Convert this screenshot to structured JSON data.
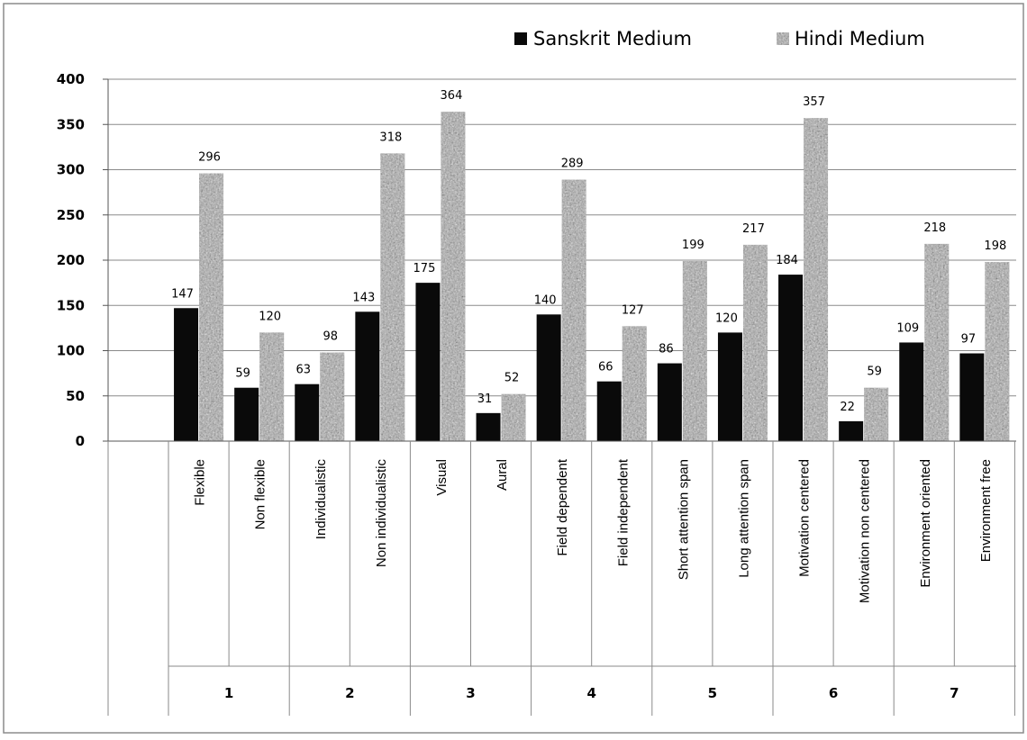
{
  "chart_data": {
    "type": "bar",
    "title": "",
    "xlabel": "",
    "ylabel": "",
    "ylim": [
      0,
      400
    ],
    "yticks": [
      0,
      50,
      100,
      150,
      200,
      250,
      300,
      350,
      400
    ],
    "grid": true,
    "legend_position": "top-right",
    "categories": [
      "Flexible",
      "Non flexible",
      "Individualistic",
      "Non individualistic",
      "Visual",
      "Aural",
      "Field dependent",
      "Field independent",
      "Short attention span",
      "Long attention span",
      "Motivation centered",
      "Motivation non centered",
      "Environment oriented",
      "Environment free"
    ],
    "groups": [
      "1",
      "2",
      "3",
      "4",
      "5",
      "6",
      "7"
    ],
    "series": [
      {
        "name": "Sanskrit Medium",
        "color": "#0a0a0a",
        "values": [
          147,
          59,
          63,
          143,
          175,
          31,
          140,
          66,
          86,
          120,
          184,
          22,
          109,
          97
        ]
      },
      {
        "name": "Hindi Medium",
        "color": "#a8a8a8",
        "values": [
          296,
          120,
          98,
          318,
          364,
          52,
          289,
          127,
          199,
          217,
          357,
          59,
          218,
          198
        ]
      }
    ]
  }
}
